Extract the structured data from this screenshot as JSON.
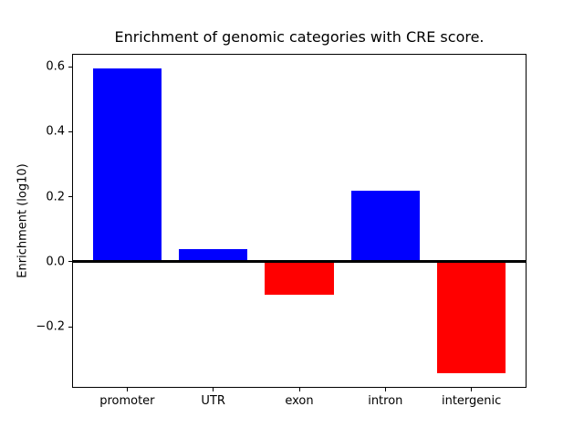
{
  "figure": {
    "title": "Enrichment of genomic categories with CRE score."
  },
  "chart_data": {
    "type": "bar",
    "title": "Enrichment of genomic categories with CRE score.",
    "categories": [
      "promoter",
      "UTR",
      "exon",
      "intron",
      "intergenic"
    ],
    "values": [
      0.595,
      0.039,
      -0.101,
      0.219,
      -0.343
    ],
    "bar_colors": [
      "#0000ff",
      "#0000ff",
      "#ff0000",
      "#0000ff",
      "#ff0000"
    ],
    "positive_color": "#0000ff",
    "negative_color": "#ff0000",
    "xlabel": "",
    "ylabel": "Enrichment (log10)",
    "yticks": [
      0.6,
      0.4,
      0.2,
      0.0,
      -0.2
    ],
    "ytick_labels": [
      "0.6",
      "0.4",
      "0.2",
      "0.0",
      "−0.2"
    ],
    "ylim": [
      -0.388,
      0.64
    ],
    "bar_width": 0.8,
    "x_pad": 0.64,
    "zero_line": true,
    "grid": false,
    "legend": null
  }
}
